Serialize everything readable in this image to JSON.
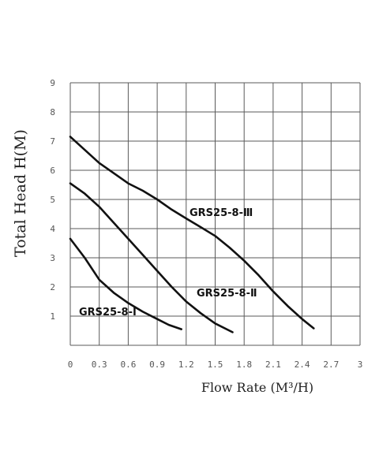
{
  "chart_data": {
    "type": "line",
    "xlabel": "Flow Rate (M³/H)",
    "ylabel": "Total Head H(M)",
    "xlim": [
      0,
      3
    ],
    "ylim": [
      0,
      9
    ],
    "x_ticks": [
      "0",
      "0.3",
      "0.6",
      "0.9",
      "1.2",
      "1.5",
      "1.8",
      "2.1",
      "2.4",
      "2.7",
      "3"
    ],
    "y_ticks": [
      "1",
      "2",
      "3",
      "4",
      "5",
      "6",
      "7",
      "8",
      "9"
    ],
    "grid": true,
    "series": [
      {
        "name": "GRS25-8-Ⅰ",
        "points": [
          [
            0,
            3.65
          ],
          [
            0.15,
            3.0
          ],
          [
            0.3,
            2.25
          ],
          [
            0.45,
            1.8
          ],
          [
            0.6,
            1.45
          ],
          [
            0.75,
            1.15
          ],
          [
            0.9,
            0.9
          ],
          [
            1.02,
            0.7
          ],
          [
            1.15,
            0.55
          ]
        ]
      },
      {
        "name": "GRS25-8-Ⅱ",
        "points": [
          [
            0,
            5.55
          ],
          [
            0.15,
            5.2
          ],
          [
            0.3,
            4.75
          ],
          [
            0.45,
            4.2
          ],
          [
            0.6,
            3.65
          ],
          [
            0.75,
            3.1
          ],
          [
            0.9,
            2.55
          ],
          [
            1.05,
            2.0
          ],
          [
            1.2,
            1.5
          ],
          [
            1.35,
            1.1
          ],
          [
            1.5,
            0.75
          ],
          [
            1.68,
            0.45
          ]
        ]
      },
      {
        "name": "GRS25-8-Ⅲ",
        "points": [
          [
            0,
            7.15
          ],
          [
            0.15,
            6.7
          ],
          [
            0.3,
            6.25
          ],
          [
            0.45,
            5.9
          ],
          [
            0.6,
            5.55
          ],
          [
            0.75,
            5.3
          ],
          [
            0.9,
            5.0
          ],
          [
            1.05,
            4.65
          ],
          [
            1.2,
            4.35
          ],
          [
            1.35,
            4.05
          ],
          [
            1.5,
            3.75
          ],
          [
            1.65,
            3.35
          ],
          [
            1.8,
            2.9
          ],
          [
            1.95,
            2.4
          ],
          [
            2.1,
            1.85
          ],
          [
            2.25,
            1.35
          ],
          [
            2.4,
            0.9
          ],
          [
            2.52,
            0.58
          ]
        ]
      }
    ]
  },
  "labels": {
    "series_1": "GRS25-8-Ⅰ",
    "series_2": "GRS25-8-Ⅱ",
    "series_3": "GRS25-8-Ⅲ"
  }
}
